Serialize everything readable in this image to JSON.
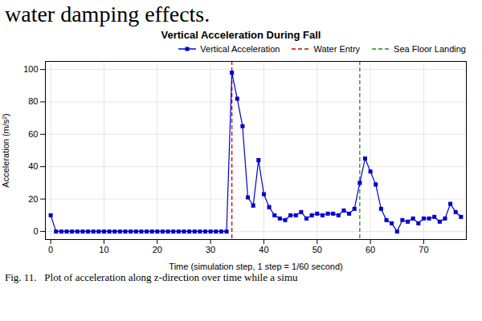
{
  "chart_data": {
    "type": "line",
    "header": "water damping effects.",
    "title": "Vertical Acceleration During Fall",
    "caption": "Fig. 11.   Plot of acceleration along z-direction over time while a simu",
    "xlabel": "Time (simulation step, 1 step = 1/60 second)",
    "ylabel": "Acceleration (m/s²)",
    "xlim": [
      -1,
      78
    ],
    "ylim": [
      -5,
      105
    ],
    "xticks": [
      0,
      10,
      20,
      30,
      40,
      50,
      60,
      70
    ],
    "yticks": [
      0,
      20,
      40,
      60,
      80,
      100
    ],
    "grid": true,
    "legend": "upper right",
    "x": [
      0,
      1,
      2,
      3,
      4,
      5,
      6,
      7,
      8,
      9,
      10,
      11,
      12,
      13,
      14,
      15,
      16,
      17,
      18,
      19,
      20,
      21,
      22,
      23,
      24,
      25,
      26,
      27,
      28,
      29,
      30,
      31,
      32,
      33,
      34,
      35,
      36,
      37,
      38,
      39,
      40,
      41,
      42,
      43,
      44,
      45,
      46,
      47,
      48,
      49,
      50,
      51,
      52,
      53,
      54,
      55,
      56,
      57,
      58,
      59,
      60,
      61,
      62,
      63,
      64,
      65,
      66,
      67,
      68,
      69,
      70,
      71,
      72,
      73,
      74,
      75,
      76,
      77
    ],
    "series": [
      {
        "name": "Vertical Acceleration",
        "color": "#0000cc",
        "marker": "square",
        "values": [
          10,
          0,
          0,
          0,
          0,
          0,
          0,
          0,
          0,
          0,
          0,
          0,
          0,
          0,
          0,
          0,
          0,
          0,
          0,
          0,
          0,
          0,
          0,
          0,
          0,
          0,
          0,
          0,
          0,
          0,
          0,
          0,
          0,
          0,
          98,
          82,
          65,
          21,
          16,
          44,
          23,
          15,
          10,
          8,
          7,
          10,
          10,
          12,
          8,
          10,
          11,
          10,
          11,
          11,
          10,
          13,
          11,
          14,
          30,
          45,
          37,
          29,
          14,
          7,
          5,
          0,
          7,
          6,
          8,
          5,
          8,
          8,
          9,
          6,
          8,
          17,
          12,
          9
        ]
      }
    ],
    "vlines": [
      {
        "name": "Water Entry",
        "x": 34,
        "color": "#cc0000",
        "line_style": "dashed"
      },
      {
        "name": "Sea Floor Landing",
        "x": 58,
        "color": "#228B22",
        "line_style": "dashed"
      }
    ]
  }
}
